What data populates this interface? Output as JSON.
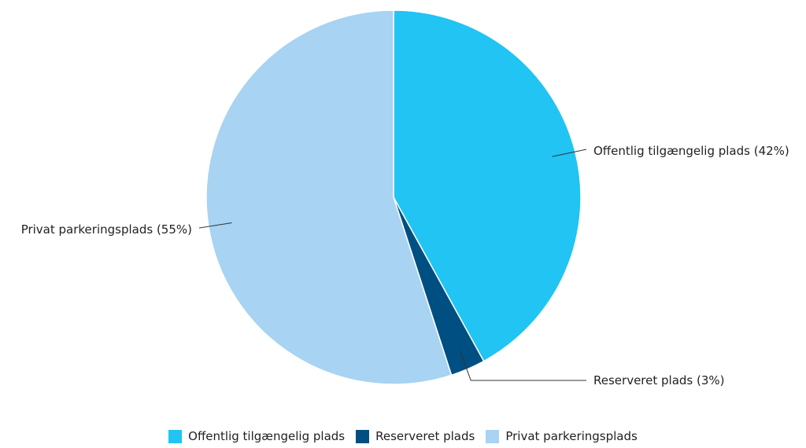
{
  "chart_data": {
    "type": "pie",
    "title": "",
    "slices": [
      {
        "name": "Offentlig tilgængelig plads",
        "value": 42,
        "label": "Offentlig tilgængelig plads (42%)",
        "color": "#21c4f3"
      },
      {
        "name": "Reserveret plads",
        "value": 3,
        "label": "Reserveret plads (3%)",
        "color": "#004f82"
      },
      {
        "name": "Privat parkeringsplads",
        "value": 55,
        "label": "Privat parkeringsplads (55%)",
        "color": "#a8d3f2"
      }
    ],
    "start_angle": "12 o'clock",
    "direction": "clockwise",
    "legend_position": "bottom"
  }
}
